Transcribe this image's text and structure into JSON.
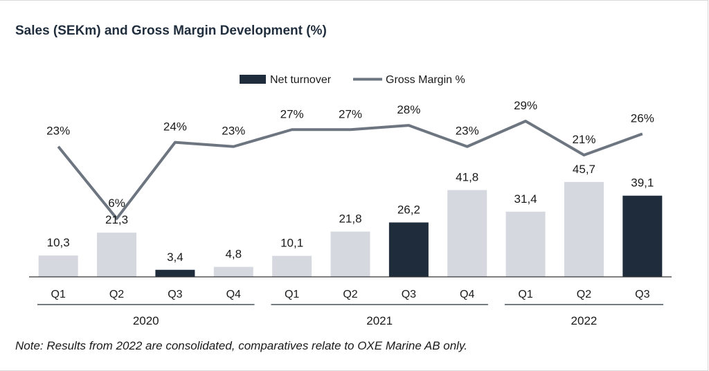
{
  "page": {
    "title": "Sales (SEKm) and Gross Margin Development (%)",
    "note": "Note: Results from 2022 are consolidated, comparatives relate to OXE Marine AB only."
  },
  "colors": {
    "bar_default": "#d5d8df",
    "bar_highlight": "#1e2c3b",
    "line": "#6d7580",
    "axis": "#333333",
    "group_line": "#1e2c3b"
  },
  "chart_data": {
    "type": "bar+line",
    "title": "Sales (SEKm) and Gross Margin Development (%)",
    "categories": [
      "Q1",
      "Q2",
      "Q3",
      "Q4",
      "Q1",
      "Q2",
      "Q3",
      "Q4",
      "Q1",
      "Q2",
      "Q3"
    ],
    "groups": [
      {
        "label": "2020",
        "from": 0,
        "to": 3
      },
      {
        "label": "2021",
        "from": 4,
        "to": 7
      },
      {
        "label": "2022",
        "from": 8,
        "to": 10
      }
    ],
    "legend_position": "top-center",
    "series": [
      {
        "name": "Net turnover",
        "type": "bar",
        "values": [
          10.3,
          21.3,
          3.4,
          4.8,
          10.1,
          21.8,
          26.2,
          41.8,
          31.4,
          45.7,
          39.1
        ],
        "labels": [
          "10,3",
          "21,3",
          "3,4",
          "4,8",
          "10,1",
          "21,8",
          "26,2",
          "41,8",
          "31,4",
          "45,7",
          "39,1"
        ],
        "highlighted": [
          false,
          false,
          true,
          false,
          false,
          false,
          true,
          false,
          false,
          false,
          true
        ]
      },
      {
        "name": "Gross Margin %",
        "type": "line",
        "values": [
          23,
          6,
          24,
          23,
          27,
          27,
          28,
          23,
          29,
          21,
          26
        ],
        "labels": [
          "23%",
          "6%",
          "24%",
          "23%",
          "27%",
          "27%",
          "28%",
          "23%",
          "29%",
          "21%",
          "26%"
        ]
      }
    ]
  }
}
